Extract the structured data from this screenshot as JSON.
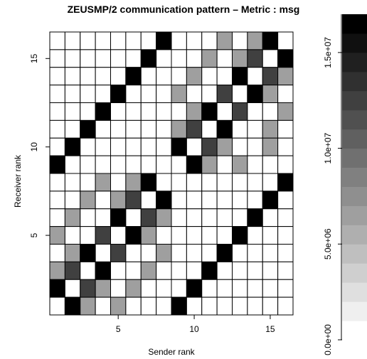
{
  "chart_data": {
    "type": "heatmap",
    "title": "ZEUSMP/2 communication pattern – Metric : msg",
    "xlabel": "Sender rank",
    "ylabel": "Receiver rank",
    "x_range": [
      1,
      16
    ],
    "y_range": [
      1,
      16
    ],
    "x_ticks": [
      5,
      10,
      15
    ],
    "y_ticks": [
      5,
      10,
      15
    ],
    "value_range": [
      0,
      17000000
    ],
    "colorbar_ticks": [
      {
        "value": 0,
        "label": "0.0e+00"
      },
      {
        "value": 5000000,
        "label": "5.0e+06"
      },
      {
        "value": 10000000,
        "label": "1.0e+07"
      },
      {
        "value": 15000000,
        "label": "1.5e+07"
      }
    ],
    "levels": 17,
    "grid_levels_by_row": [
      [
        0,
        0,
        0,
        0,
        0,
        0,
        0,
        16,
        0,
        0,
        0,
        6,
        0,
        6,
        16,
        0
      ],
      [
        0,
        0,
        0,
        0,
        0,
        0,
        16,
        0,
        0,
        0,
        6,
        0,
        6,
        12,
        0,
        16
      ],
      [
        0,
        0,
        0,
        0,
        0,
        16,
        0,
        0,
        0,
        6,
        0,
        0,
        16,
        0,
        12,
        6
      ],
      [
        0,
        0,
        0,
        0,
        16,
        0,
        0,
        0,
        6,
        0,
        0,
        12,
        0,
        16,
        6,
        0
      ],
      [
        0,
        0,
        0,
        16,
        0,
        0,
        0,
        0,
        0,
        6,
        16,
        0,
        12,
        0,
        0,
        6
      ],
      [
        0,
        0,
        16,
        0,
        0,
        0,
        0,
        0,
        6,
        12,
        0,
        16,
        0,
        0,
        6,
        0
      ],
      [
        0,
        16,
        0,
        0,
        0,
        0,
        0,
        0,
        16,
        0,
        12,
        6,
        0,
        0,
        6,
        0
      ],
      [
        16,
        0,
        0,
        0,
        0,
        0,
        0,
        0,
        0,
        16,
        6,
        0,
        6,
        0,
        0,
        0
      ],
      [
        0,
        0,
        0,
        6,
        0,
        6,
        16,
        0,
        0,
        0,
        0,
        0,
        0,
        0,
        0,
        16
      ],
      [
        0,
        0,
        6,
        0,
        6,
        12,
        0,
        16,
        0,
        0,
        0,
        0,
        0,
        0,
        16,
        0
      ],
      [
        0,
        6,
        0,
        0,
        16,
        0,
        12,
        6,
        0,
        0,
        0,
        0,
        0,
        16,
        0,
        0
      ],
      [
        6,
        0,
        0,
        12,
        0,
        16,
        6,
        0,
        0,
        0,
        0,
        0,
        16,
        0,
        0,
        0
      ],
      [
        0,
        6,
        16,
        0,
        12,
        0,
        0,
        6,
        0,
        0,
        0,
        16,
        0,
        0,
        0,
        0
      ],
      [
        6,
        12,
        0,
        16,
        0,
        0,
        6,
        0,
        0,
        0,
        16,
        0,
        0,
        0,
        0,
        0
      ],
      [
        16,
        0,
        12,
        6,
        0,
        6,
        0,
        0,
        0,
        16,
        0,
        0,
        0,
        0,
        0,
        0
      ],
      [
        0,
        16,
        6,
        0,
        6,
        0,
        0,
        0,
        16,
        0,
        0,
        0,
        0,
        0,
        0,
        0
      ]
    ]
  }
}
